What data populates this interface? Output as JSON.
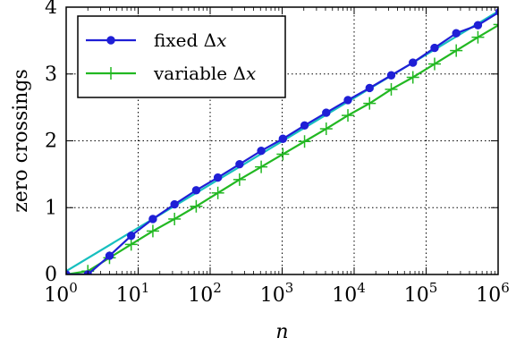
{
  "chart_data": {
    "type": "line",
    "xlabel": "n",
    "ylabel": "zero crossings",
    "xscale": "log",
    "xlim": [
      1,
      1000000
    ],
    "ylim": [
      0,
      4
    ],
    "x_tick_labels": [
      {
        "base": "10",
        "exp": "0"
      },
      {
        "base": "10",
        "exp": "1"
      },
      {
        "base": "10",
        "exp": "2"
      },
      {
        "base": "10",
        "exp": "3"
      },
      {
        "base": "10",
        "exp": "4"
      },
      {
        "base": "10",
        "exp": "5"
      },
      {
        "base": "10",
        "exp": "6"
      }
    ],
    "y_ticks": [
      "0",
      "1",
      "2",
      "3",
      "4"
    ],
    "grid": true,
    "legend_position": "top-left",
    "series": [
      {
        "name": "fixed Δx",
        "legend_text": "fixed Δ",
        "legend_var": "x",
        "color": "#1f1fd6",
        "marker": "circle",
        "x": [
          1,
          2,
          4,
          8,
          16,
          32,
          64,
          128,
          256,
          512,
          1024,
          2048,
          4096,
          8192,
          16384,
          32768,
          65536,
          131072,
          262144,
          524288,
          1048576
        ],
        "y": [
          0,
          0,
          0.28,
          0.58,
          0.83,
          1.05,
          1.26,
          1.45,
          1.65,
          1.85,
          2.03,
          2.23,
          2.42,
          2.61,
          2.79,
          2.98,
          3.17,
          3.39,
          3.61,
          3.73,
          3.93
        ]
      },
      {
        "name": "variable Δx",
        "legend_text": "variable Δ",
        "legend_var": "x",
        "color": "#22b822",
        "marker": "plus",
        "x": [
          1,
          2,
          4,
          8,
          16,
          32,
          64,
          128,
          256,
          512,
          1024,
          2048,
          4096,
          8192,
          16384,
          32768,
          65536,
          131072,
          262144,
          524288,
          1048576
        ],
        "y": [
          0,
          0.05,
          0.25,
          0.45,
          0.65,
          0.83,
          1.02,
          1.22,
          1.42,
          1.61,
          1.8,
          1.99,
          2.18,
          2.38,
          2.56,
          2.77,
          2.95,
          3.15,
          3.35,
          3.55,
          3.74
        ]
      },
      {
        "name": "",
        "color": "#17bfbf",
        "marker": "none",
        "x": [
          1,
          1048576
        ],
        "y": [
          0.05,
          3.95
        ]
      }
    ]
  }
}
